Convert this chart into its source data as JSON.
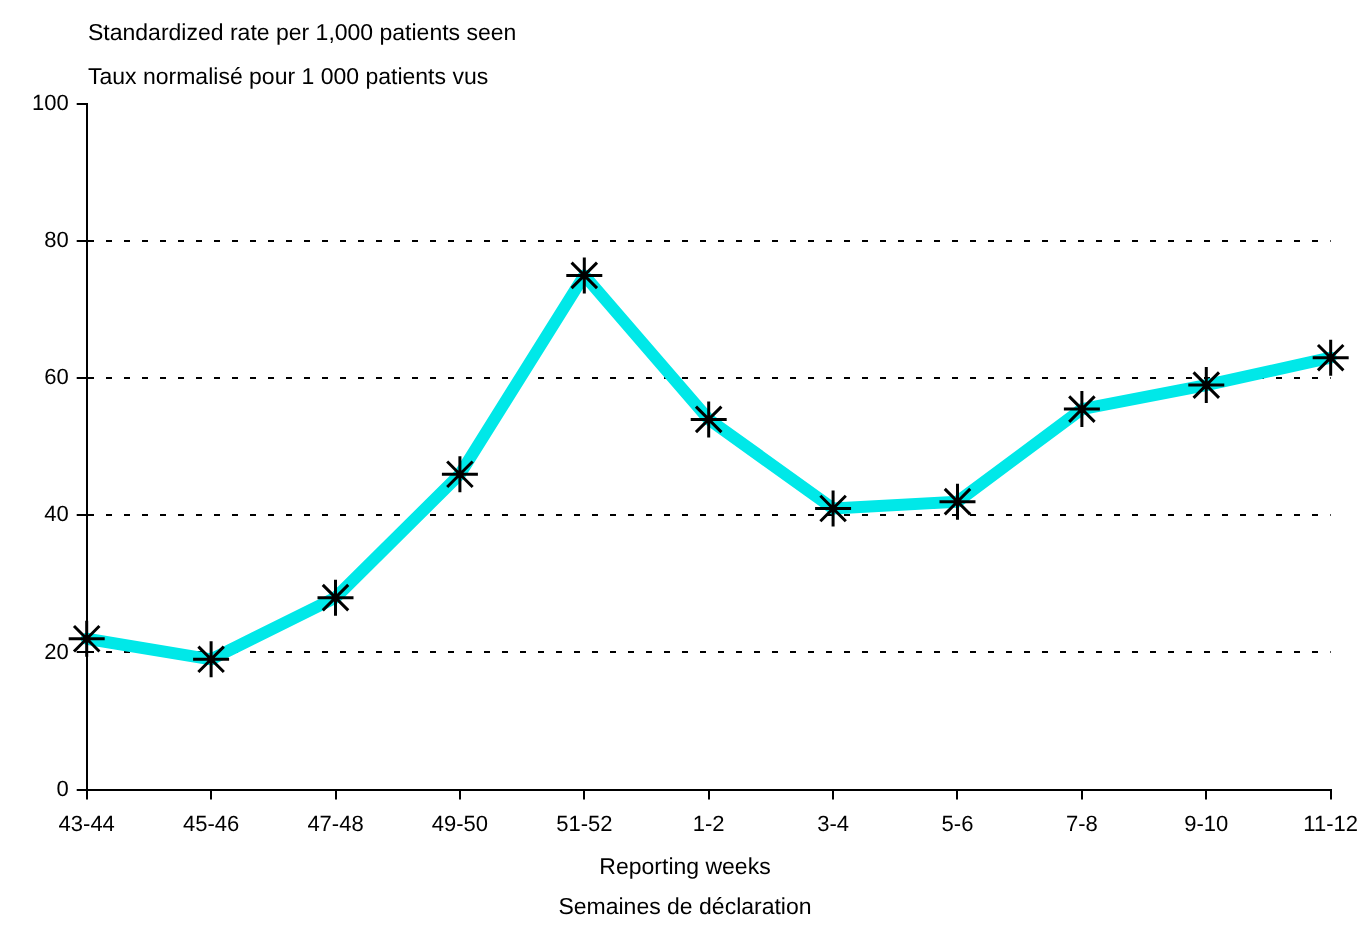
{
  "chart_data": {
    "type": "line",
    "ylabel": "Standardized rate per 1,000 patients seen\nTaux normalisé pour 1 000 patients vus",
    "xlabel": "Reporting weeks\nSemaines de déclaration",
    "categories": [
      "43-44",
      "45-46",
      "47-48",
      "49-50",
      "51-52",
      "1-2",
      "3-4",
      "5-6",
      "7-8",
      "9-10",
      "11-12"
    ],
    "series": [
      {
        "color": "#00e8e8",
        "values": [
          22,
          19,
          28,
          46,
          75,
          54,
          41,
          42,
          55.5,
          59,
          63
        ]
      }
    ],
    "ylim": [
      0,
      100
    ],
    "yticks": [
      0,
      20,
      40,
      60,
      80,
      100
    ],
    "grid": "y",
    "legend": false,
    "marker": "cross",
    "line_style": "solid"
  }
}
